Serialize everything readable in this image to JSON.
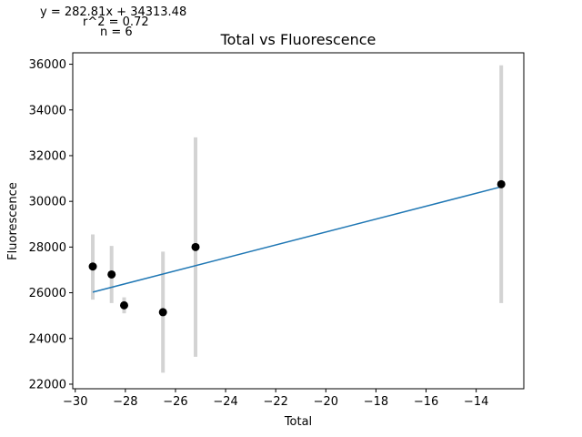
{
  "chart_data": {
    "type": "scatter",
    "title": "Total vs Fluorescence",
    "xlabel": "Total",
    "ylabel": "Fluorescence",
    "xlim": [
      -30.1,
      -12.1
    ],
    "ylim": [
      21800,
      36500
    ],
    "xticks": [
      -30,
      -28,
      -26,
      -24,
      -22,
      -20,
      -18,
      -16,
      -14
    ],
    "yticks": [
      22000,
      24000,
      26000,
      28000,
      30000,
      32000,
      34000,
      36000
    ],
    "points": [
      {
        "x": -29.3,
        "y": 27150,
        "err_low": 25700,
        "err_high": 28550
      },
      {
        "x": -28.55,
        "y": 26800,
        "err_low": 25550,
        "err_high": 28050
      },
      {
        "x": -28.05,
        "y": 25450,
        "err_low": 25100,
        "err_high": 25800
      },
      {
        "x": -26.5,
        "y": 25150,
        "err_low": 22500,
        "err_high": 27800
      },
      {
        "x": -25.2,
        "y": 28000,
        "err_low": 23200,
        "err_high": 32800
      },
      {
        "x": -13.0,
        "y": 30750,
        "err_low": 25550,
        "err_high": 35950
      }
    ],
    "fit_line": {
      "x": [
        -29.3,
        -13.0
      ],
      "y": [
        26028,
        30637
      ]
    },
    "annotations": [
      "y = 282.81x + 34313.48",
      "r^2 = 0.72",
      "n = 6"
    ],
    "colors": {
      "points": "#000000",
      "errorbars": "#d3d3d3",
      "fit": "#1f77b4"
    },
    "grid": false,
    "legend": "none"
  }
}
